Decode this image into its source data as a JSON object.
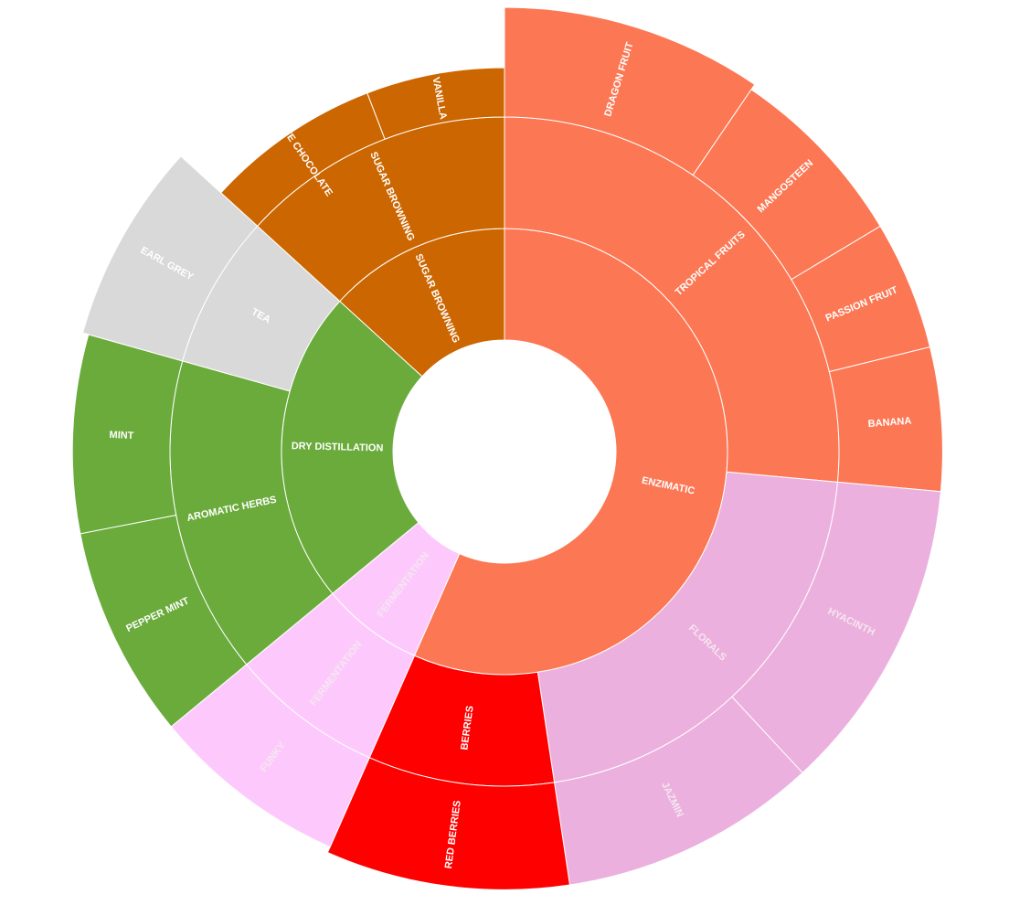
{
  "chart_data": {
    "type": "sunburst",
    "title": "",
    "rings": [
      "category",
      "sub-category",
      "flavor"
    ],
    "nodes": [
      {
        "label": "ENZIMATIC",
        "value": 53.5,
        "color": "#fc7753",
        "children": [
          {
            "label": "TROPICAL FRUITS",
            "value": 25.0,
            "color": "#fc7753",
            "children": [
              {
                "label": "DRAGON FRUIT",
                "value": 9.0,
                "color": "#fc7753"
              },
              {
                "label": "MANGOSTEEN",
                "value": 6.5,
                "color": "#fc7753"
              },
              {
                "label": "PASSION FRUIT",
                "value": 4.5,
                "color": "#fc7753"
              },
              {
                "label": "BANANA",
                "value": 5.0,
                "color": "#fc7753"
              }
            ]
          },
          {
            "label": "FLORALS",
            "value": 20.0,
            "color": "#ecb0de",
            "children": [
              {
                "label": "HYACINTH",
                "value": 11.0,
                "color": "#ecb0de"
              },
              {
                "label": "JAZMIN",
                "value": 9.0,
                "color": "#ecb0de"
              }
            ]
          },
          {
            "label": "BERRIES",
            "value": 8.5,
            "color": "#ff0000",
            "children": [
              {
                "label": "RED BERRIES",
                "value": 8.5,
                "color": "#ff0000"
              }
            ]
          }
        ]
      },
      {
        "label": "FERMENTATION",
        "value": 7.0,
        "color": "#fdc9fc",
        "children": [
          {
            "label": "FERMENTATION",
            "value": 7.0,
            "color": "#fdc9fc",
            "children": [
              {
                "label": "FUNKY",
                "value": 7.0,
                "color": "#fdc9fc"
              }
            ]
          }
        ]
      },
      {
        "label": "DRY DISTILLATION",
        "value": 21.5,
        "color": "#6aab3c",
        "children": [
          {
            "label": "AROMATIC HERBS",
            "value": 14.5,
            "color": "#6aab3c",
            "children": [
              {
                "label": "PEPPER MINT",
                "value": 7.5,
                "color": "#6aab3c"
              },
              {
                "label": "MINT",
                "value": 7.0,
                "color": "#6aab3c"
              }
            ]
          },
          {
            "label": "TEA",
            "value": 7.0,
            "color": "#d9d9d9",
            "children": [
              {
                "label": "EARL GREY",
                "value": 7.0,
                "color": "#d9d9d9"
              }
            ]
          }
        ]
      },
      {
        "label": "SUGAR BROWNING",
        "value": 12.5,
        "color": "#cc6600",
        "children": [
          {
            "label": "SUGAR BROWNING",
            "value": 12.5,
            "color": "#cc6600",
            "children": [
              {
                "label": "WHITE CHOCOLATE",
                "value": 7.0,
                "color": "#cc6600"
              },
              {
                "label": "VANILLA",
                "value": 5.5,
                "color": "#cc6600"
              }
            ]
          }
        ]
      }
    ],
    "flavor_ring_extent": {
      "DRAGON FRUIT": 1.0,
      "MANGOSTEEN": 0.9,
      "PASSION FRUIT": 0.9,
      "BANANA": 0.9,
      "HYACINTH": 0.9,
      "JAZMIN": 0.9,
      "RED BERRIES": 0.9,
      "FUNKY": 0.8,
      "PEPPER MINT": 0.8,
      "MINT": 0.8,
      "EARL GREY": 0.9,
      "WHITE CHOCOLATE": 0.0,
      "VANILLA": 0.0
    },
    "legend": "none"
  }
}
